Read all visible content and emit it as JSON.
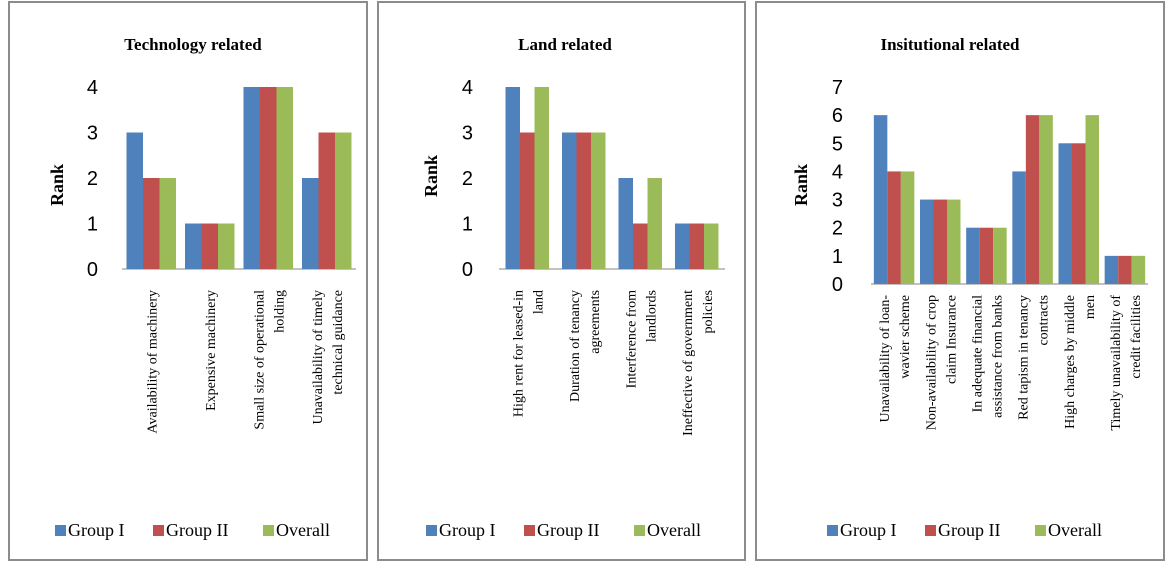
{
  "chart_data": [
    {
      "type": "bar",
      "title": "Technology related",
      "ylabel": "Rank",
      "xlabel": "",
      "ylim": [
        0,
        4
      ],
      "yticks": [
        "0",
        "1",
        "2",
        "3",
        "4"
      ],
      "categories": [
        [
          "Availability of machinery"
        ],
        [
          "Expensive machinery"
        ],
        [
          "Small size of operational",
          "holding"
        ],
        [
          "Unavailability of timely",
          "technical guidance"
        ]
      ],
      "series": [
        {
          "name": "Group I",
          "color": "#4F81BD",
          "values": [
            3,
            1,
            4,
            2
          ]
        },
        {
          "name": "Group II",
          "color": "#C0504D",
          "values": [
            2,
            1,
            4,
            3
          ]
        },
        {
          "name": "Overall",
          "color": "#9BBB59",
          "values": [
            2,
            1,
            4,
            3
          ]
        }
      ],
      "legend": "bottom"
    },
    {
      "type": "bar",
      "title": "Land related",
      "ylabel": "Rank",
      "xlabel": "",
      "ylim": [
        0,
        4
      ],
      "yticks": [
        "0",
        "1",
        "2",
        "3",
        "4"
      ],
      "categories": [
        [
          "High  rent for leased-in",
          "land"
        ],
        [
          "Duration of tenancy",
          "agreements"
        ],
        [
          "Interference from",
          "landlords"
        ],
        [
          "Ineffective of government",
          "policies"
        ]
      ],
      "series": [
        {
          "name": "Group I",
          "color": "#4F81BD",
          "values": [
            4,
            3,
            2,
            1
          ]
        },
        {
          "name": "Group II",
          "color": "#C0504D",
          "values": [
            3,
            3,
            1,
            1
          ]
        },
        {
          "name": "Overall",
          "color": "#9BBB59",
          "values": [
            4,
            3,
            2,
            1
          ]
        }
      ],
      "legend": "bottom"
    },
    {
      "type": "bar",
      "title": "Insitutional related",
      "ylabel": "Rank",
      "xlabel": "",
      "ylim": [
        0,
        7
      ],
      "yticks": [
        "0",
        "1",
        "2",
        "3",
        "4",
        "5",
        "6",
        "7"
      ],
      "categories": [
        [
          "Unavailability of loan-",
          "wavier scheme"
        ],
        [
          "Non-availability of crop",
          "claim Insurance"
        ],
        [
          "In adequate financial",
          "assistance from banks"
        ],
        [
          "Red tapism in tenancy",
          "contracts"
        ],
        [
          "High charges by middle",
          "men"
        ],
        [
          "Timely unavailability of",
          "credit facilities"
        ]
      ],
      "series": [
        {
          "name": "Group I",
          "color": "#4F81BD",
          "values": [
            6,
            3,
            2,
            4,
            5,
            1
          ]
        },
        {
          "name": "Group II",
          "color": "#C0504D",
          "values": [
            4,
            3,
            2,
            6,
            5,
            1
          ]
        },
        {
          "name": "Overall",
          "color": "#9BBB59",
          "values": [
            4,
            3,
            2,
            6,
            6,
            1
          ]
        }
      ],
      "legend": "bottom"
    }
  ]
}
